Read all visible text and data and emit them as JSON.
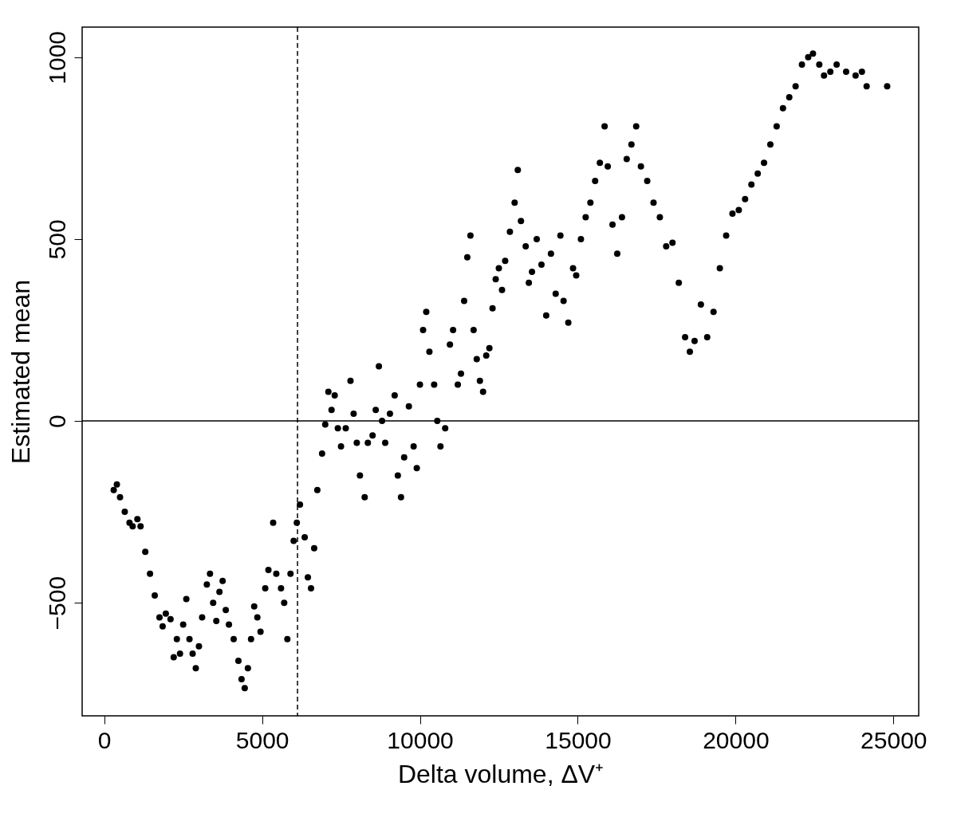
{
  "chart_data": {
    "type": "scatter",
    "xlabel": "Delta volume, ΔV⁺",
    "ylabel": "Estimated mean",
    "xlim": [
      -700,
      25800
    ],
    "ylim": [
      -811,
      1083
    ],
    "xticks": [
      0,
      5000,
      10000,
      15000,
      20000,
      25000
    ],
    "yticks": [
      -500,
      0,
      500,
      1000
    ],
    "marker": "circle",
    "grid": false,
    "ref_lines": [
      {
        "axis": "y",
        "value": 0,
        "line_style": "solid"
      },
      {
        "axis": "x",
        "value": 6122,
        "line_style": "dashed"
      }
    ],
    "series": [
      {
        "color": "#000000",
        "x": [
          300,
          400,
          500,
          650,
          800,
          900,
          1050,
          1150,
          1300,
          1450,
          1600,
          1750,
          1850,
          1950,
          2100,
          2200,
          2300,
          2400,
          2500,
          2600,
          2700,
          2800,
          2900,
          3000,
          3100,
          3250,
          3350,
          3450,
          3550,
          3650,
          3750,
          3850,
          3950,
          4100,
          4250,
          4350,
          4450,
          4550,
          4650,
          4750,
          4850,
          4950,
          5100,
          5200,
          5350,
          5450,
          5600,
          5700,
          5800,
          5900,
          6000,
          6100,
          6200,
          6350,
          6450,
          6550,
          6650,
          6750,
          6900,
          7000,
          7100,
          7200,
          7300,
          7400,
          7500,
          7650,
          7800,
          7900,
          8000,
          8100,
          8250,
          8350,
          8500,
          8600,
          8700,
          8800,
          8900,
          9050,
          9200,
          9300,
          9400,
          9500,
          9650,
          9800,
          9900,
          10000,
          10100,
          10200,
          10300,
          10450,
          10550,
          10650,
          10800,
          10950,
          11050,
          11200,
          11300,
          11400,
          11500,
          11600,
          11700,
          11800,
          11900,
          12000,
          12100,
          12200,
          12300,
          12400,
          12500,
          12600,
          12700,
          12850,
          13000,
          13100,
          13200,
          13350,
          13450,
          13550,
          13700,
          13850,
          14000,
          14150,
          14300,
          14450,
          14550,
          14700,
          14850,
          14950,
          15100,
          15250,
          15400,
          15550,
          15700,
          15850,
          15950,
          16100,
          16250,
          16400,
          16550,
          16700,
          16850,
          17000,
          17200,
          17400,
          17600,
          17800,
          18000,
          18200,
          18400,
          18550,
          18700,
          18900,
          19100,
          19300,
          19500,
          19700,
          19900,
          20100,
          20300,
          20500,
          20700,
          20900,
          21100,
          21300,
          21500,
          21700,
          21900,
          22100,
          22300,
          22450,
          22650,
          22800,
          23000,
          23200,
          23500,
          23800,
          24000,
          24150,
          24800
        ],
        "values": [
          -190,
          -175,
          -210,
          -250,
          -280,
          -290,
          -270,
          -290,
          -360,
          -420,
          -480,
          -540,
          -565,
          -530,
          -545,
          -650,
          -600,
          -640,
          -560,
          -490,
          -600,
          -640,
          -680,
          -620,
          -540,
          -450,
          -420,
          -500,
          -550,
          -470,
          -440,
          -520,
          -560,
          -600,
          -660,
          -710,
          -735,
          -680,
          -600,
          -510,
          -540,
          -580,
          -460,
          -410,
          -280,
          -420,
          -460,
          -500,
          -600,
          -420,
          -330,
          -280,
          -230,
          -320,
          -430,
          -460,
          -350,
          -190,
          -90,
          -10,
          80,
          30,
          70,
          -20,
          -70,
          -20,
          110,
          20,
          -60,
          -150,
          -210,
          -60,
          -40,
          30,
          150,
          0,
          -60,
          20,
          70,
          -150,
          -210,
          -100,
          40,
          -70,
          -130,
          100,
          250,
          300,
          190,
          100,
          0,
          -70,
          -20,
          210,
          250,
          100,
          130,
          330,
          450,
          510,
          250,
          170,
          110,
          80,
          180,
          200,
          310,
          390,
          420,
          360,
          440,
          520,
          600,
          690,
          550,
          480,
          380,
          410,
          500,
          430,
          290,
          460,
          350,
          510,
          330,
          270,
          420,
          400,
          500,
          560,
          600,
          660,
          710,
          810,
          700,
          540,
          460,
          560,
          720,
          760,
          810,
          700,
          660,
          600,
          560,
          480,
          490,
          380,
          230,
          190,
          220,
          320,
          230,
          300,
          420,
          510,
          570,
          580,
          610,
          650,
          680,
          710,
          760,
          810,
          860,
          890,
          920,
          980,
          1000,
          1010,
          980,
          950,
          960,
          980,
          960,
          950,
          960,
          920,
          920
        ]
      }
    ]
  }
}
